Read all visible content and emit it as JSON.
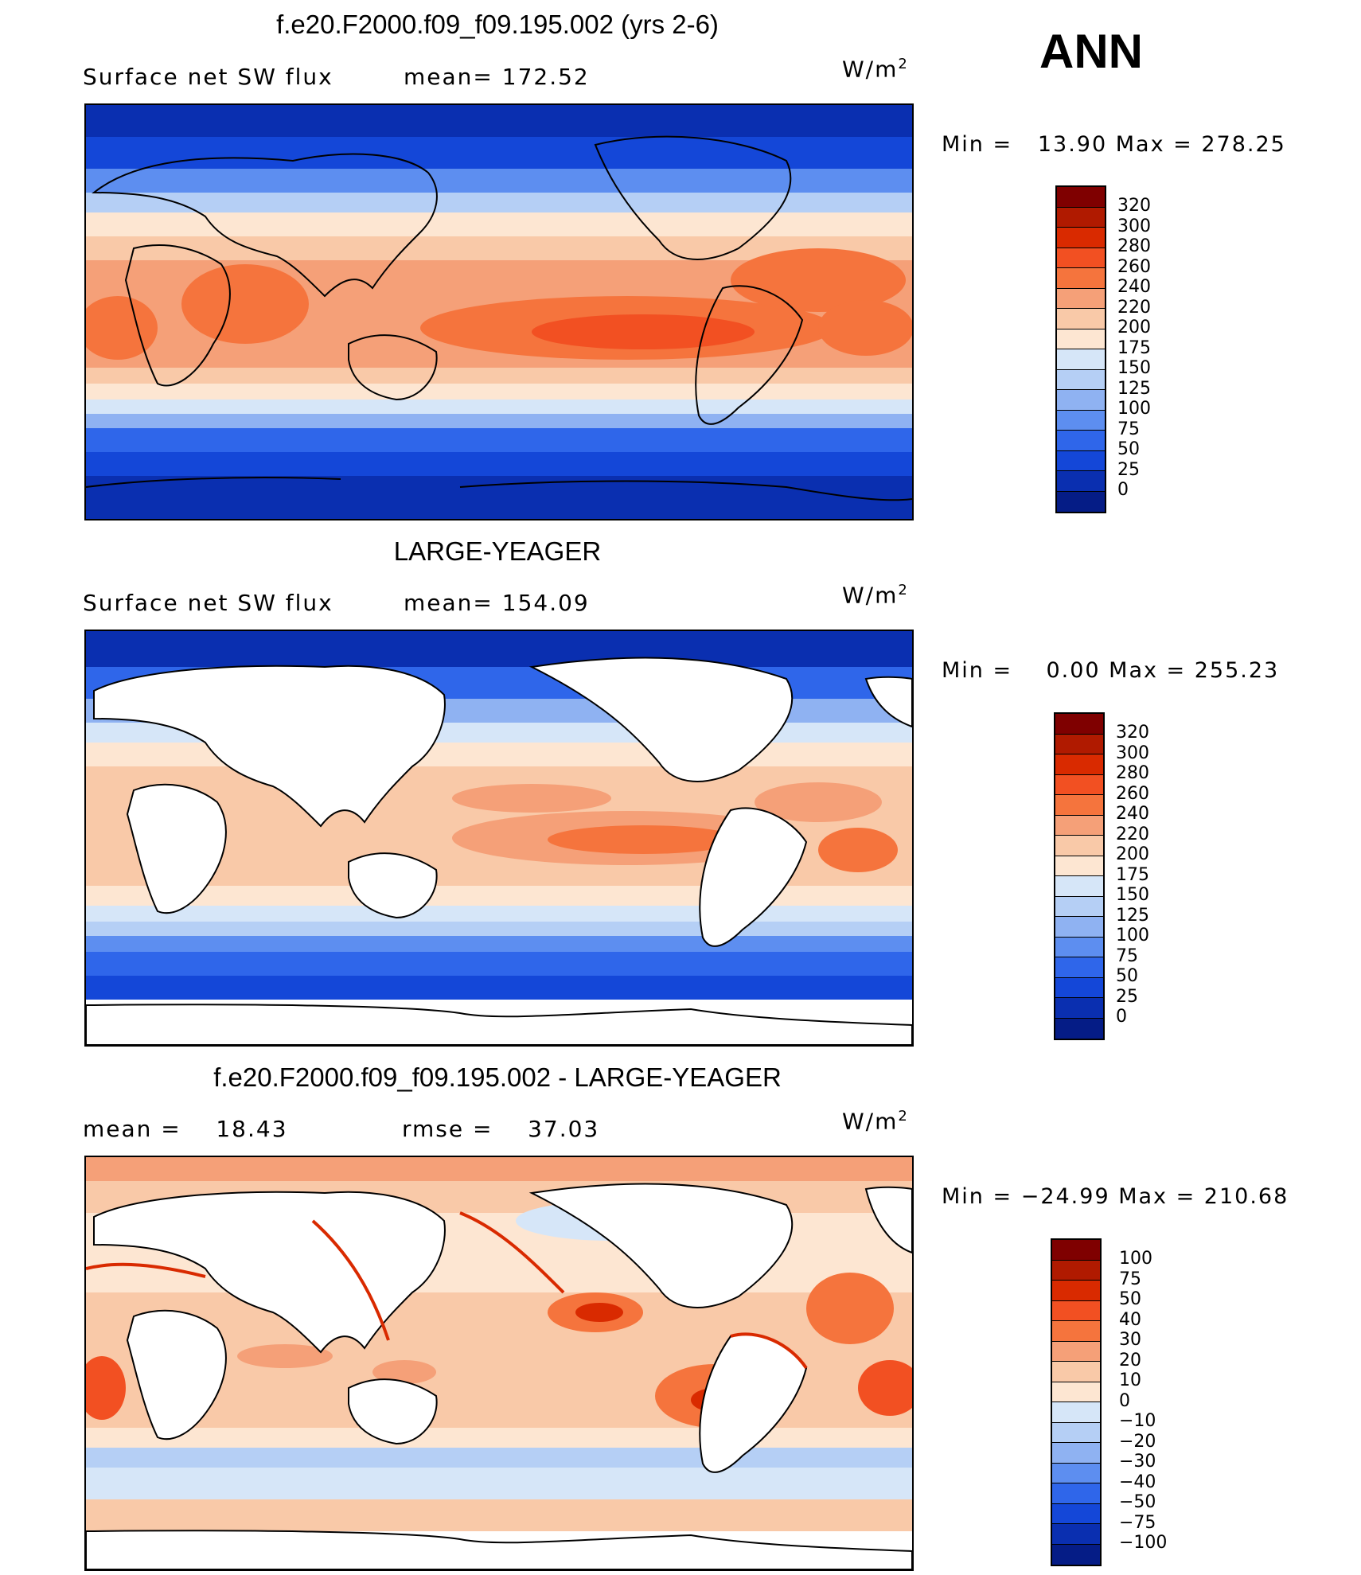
{
  "season": "ANN",
  "panels": [
    {
      "title": "f.e20.F2000.f09_f09.195.002 (yrs 2-6)",
      "subtitle_left": "Surface net SW flux",
      "subtitle_mid": "mean= 172.52",
      "units_base": "W/m",
      "units_exp": "2",
      "minmax": "Min =   13.90 Max = 278.25",
      "scale": [
        "320",
        "300",
        "280",
        "260",
        "240",
        "220",
        "200",
        "175",
        "150",
        "125",
        "100",
        "75",
        "50",
        "25",
        "0"
      ],
      "colors": [
        "#7f0000",
        "#b01a00",
        "#d92a00",
        "#f25022",
        "#f5743d",
        "#f5a078",
        "#f9c9a8",
        "#fde6d2",
        "#d6e6f8",
        "#b5cff5",
        "#8fb2f2",
        "#5d8ef0",
        "#2f66ea",
        "#1447d8",
        "#0a2fb0",
        "#051c86"
      ]
    },
    {
      "title": "LARGE-YEAGER",
      "subtitle_left": "Surface net SW flux",
      "subtitle_mid": "mean= 154.09",
      "units_base": "W/m",
      "units_exp": "2",
      "minmax": "Min =    0.00 Max = 255.23",
      "scale": [
        "320",
        "300",
        "280",
        "260",
        "240",
        "220",
        "200",
        "175",
        "150",
        "125",
        "100",
        "75",
        "50",
        "25",
        "0"
      ],
      "colors": [
        "#7f0000",
        "#b01a00",
        "#d92a00",
        "#f25022",
        "#f5743d",
        "#f5a078",
        "#f9c9a8",
        "#fde6d2",
        "#d6e6f8",
        "#b5cff5",
        "#8fb2f2",
        "#5d8ef0",
        "#2f66ea",
        "#1447d8",
        "#0a2fb0",
        "#051c86"
      ]
    },
    {
      "title": "f.e20.F2000.f09_f09.195.002 - LARGE-YEAGER",
      "subtitle_left": "mean =    18.43",
      "subtitle_mid": "rmse =    37.03",
      "units_base": "W/m",
      "units_exp": "2",
      "minmax": "Min = −24.99 Max = 210.68",
      "scale": [
        "100",
        "75",
        "50",
        "40",
        "30",
        "20",
        "10",
        "0",
        "−10",
        "−20",
        "−30",
        "−40",
        "−50",
        "−75",
        "−100"
      ],
      "colors": [
        "#7f0000",
        "#b01a00",
        "#d92a00",
        "#f25022",
        "#f5743d",
        "#f5a078",
        "#f9c9a8",
        "#fde6d2",
        "#d6e6f8",
        "#b5cff5",
        "#8fb2f2",
        "#5d8ef0",
        "#2f66ea",
        "#1447d8",
        "#0a2fb0",
        "#051c86"
      ]
    }
  ]
}
